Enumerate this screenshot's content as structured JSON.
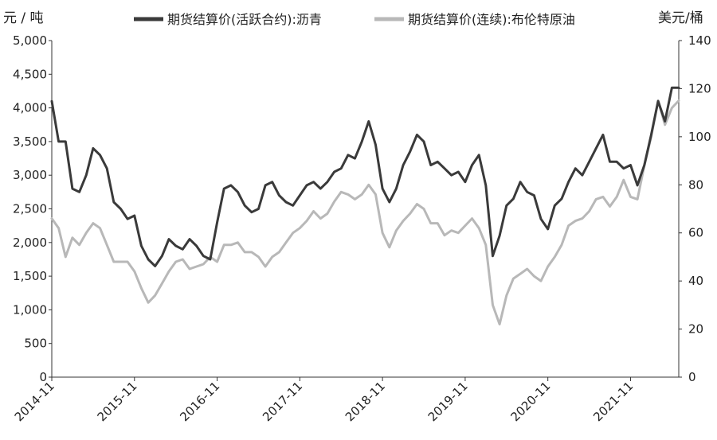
{
  "chart_data": {
    "type": "line",
    "title": "",
    "left_axis_unit": "元 / 吨",
    "right_axis_unit": "美元/桶",
    "left_ylim": [
      0,
      5000
    ],
    "right_ylim": [
      0,
      140
    ],
    "left_ticks": [
      "0",
      "500",
      "1,000",
      "1,500",
      "2,000",
      "2,500",
      "3,000",
      "3,500",
      "4,000",
      "4,500",
      "5,000"
    ],
    "right_ticks": [
      "0",
      "20",
      "40",
      "60",
      "80",
      "100",
      "120",
      "140"
    ],
    "x_ticks": [
      "2014-11",
      "2015-11",
      "2016-11",
      "2017-11",
      "2018-11",
      "2019-11",
      "2020-11",
      "2021-11"
    ],
    "x_range": [
      "2014-11",
      "2022-06"
    ],
    "grid": false,
    "legend_position": "top",
    "x_unit": "month",
    "series": [
      {
        "name": "期货结算价(活跃合约):沥青",
        "axis": "left",
        "color": "#3a3a3a",
        "x": [
          "2014-11",
          "2014-12",
          "2015-01",
          "2015-02",
          "2015-03",
          "2015-04",
          "2015-05",
          "2015-06",
          "2015-07",
          "2015-08",
          "2015-09",
          "2015-10",
          "2015-11",
          "2015-12",
          "2016-01",
          "2016-02",
          "2016-03",
          "2016-04",
          "2016-05",
          "2016-06",
          "2016-07",
          "2016-08",
          "2016-09",
          "2016-10",
          "2016-11",
          "2016-12",
          "2017-01",
          "2017-02",
          "2017-03",
          "2017-04",
          "2017-05",
          "2017-06",
          "2017-07",
          "2017-08",
          "2017-09",
          "2017-10",
          "2017-11",
          "2017-12",
          "2018-01",
          "2018-02",
          "2018-03",
          "2018-04",
          "2018-05",
          "2018-06",
          "2018-07",
          "2018-08",
          "2018-09",
          "2018-10",
          "2018-11",
          "2018-12",
          "2019-01",
          "2019-02",
          "2019-03",
          "2019-04",
          "2019-05",
          "2019-06",
          "2019-07",
          "2019-08",
          "2019-09",
          "2019-10",
          "2019-11",
          "2019-12",
          "2020-01",
          "2020-02",
          "2020-03",
          "2020-04",
          "2020-05",
          "2020-06",
          "2020-07",
          "2020-08",
          "2020-09",
          "2020-10",
          "2020-11",
          "2020-12",
          "2021-01",
          "2021-02",
          "2021-03",
          "2021-04",
          "2021-05",
          "2021-06",
          "2021-07",
          "2021-08",
          "2021-09",
          "2021-10",
          "2021-11",
          "2021-12",
          "2022-01",
          "2022-02",
          "2022-03",
          "2022-04",
          "2022-05",
          "2022-06"
        ],
        "values": [
          4100,
          3500,
          3500,
          2800,
          2750,
          3000,
          3400,
          3300,
          3100,
          2600,
          2500,
          2350,
          2400,
          1950,
          1750,
          1650,
          1800,
          2050,
          1950,
          1900,
          2050,
          1950,
          1800,
          1750,
          2300,
          2800,
          2850,
          2750,
          2550,
          2450,
          2500,
          2850,
          2900,
          2700,
          2600,
          2550,
          2700,
          2850,
          2900,
          2800,
          2900,
          3050,
          3100,
          3300,
          3250,
          3500,
          3800,
          3450,
          2800,
          2600,
          2800,
          3150,
          3350,
          3600,
          3500,
          3150,
          3200,
          3100,
          3000,
          3050,
          2900,
          3150,
          3300,
          2850,
          1800,
          2100,
          2550,
          2650,
          2900,
          2750,
          2700,
          2350,
          2200,
          2550,
          2650,
          2900,
          3100,
          3000,
          3200,
          3400,
          3600,
          3200,
          3200,
          3100,
          3150,
          2850,
          3150,
          3600,
          4100,
          3800,
          4300,
          4300
        ]
      },
      {
        "name": "期货结算价(连续):布伦特原油",
        "axis": "right",
        "color": "#b8b8b8",
        "x": [
          "2014-11",
          "2014-12",
          "2015-01",
          "2015-02",
          "2015-03",
          "2015-04",
          "2015-05",
          "2015-06",
          "2015-07",
          "2015-08",
          "2015-09",
          "2015-10",
          "2015-11",
          "2015-12",
          "2016-01",
          "2016-02",
          "2016-03",
          "2016-04",
          "2016-05",
          "2016-06",
          "2016-07",
          "2016-08",
          "2016-09",
          "2016-10",
          "2016-11",
          "2016-12",
          "2017-01",
          "2017-02",
          "2017-03",
          "2017-04",
          "2017-05",
          "2017-06",
          "2017-07",
          "2017-08",
          "2017-09",
          "2017-10",
          "2017-11",
          "2017-12",
          "2018-01",
          "2018-02",
          "2018-03",
          "2018-04",
          "2018-05",
          "2018-06",
          "2018-07",
          "2018-08",
          "2018-09",
          "2018-10",
          "2018-11",
          "2018-12",
          "2019-01",
          "2019-02",
          "2019-03",
          "2019-04",
          "2019-05",
          "2019-06",
          "2019-07",
          "2019-08",
          "2019-09",
          "2019-10",
          "2019-11",
          "2019-12",
          "2020-01",
          "2020-02",
          "2020-03",
          "2020-04",
          "2020-05",
          "2020-06",
          "2020-07",
          "2020-08",
          "2020-09",
          "2020-10",
          "2020-11",
          "2020-12",
          "2021-01",
          "2021-02",
          "2021-03",
          "2021-04",
          "2021-05",
          "2021-06",
          "2021-07",
          "2021-08",
          "2021-09",
          "2021-10",
          "2021-11",
          "2021-12",
          "2022-01",
          "2022-02",
          "2022-03",
          "2022-04",
          "2022-05",
          "2022-06"
        ],
        "values": [
          66,
          62,
          50,
          58,
          55,
          60,
          64,
          62,
          55,
          48,
          48,
          48,
          44,
          37,
          31,
          34,
          39,
          44,
          48,
          49,
          45,
          46,
          47,
          50,
          48,
          55,
          55,
          56,
          52,
          52,
          50,
          46,
          50,
          52,
          56,
          60,
          62,
          65,
          69,
          66,
          68,
          73,
          77,
          76,
          74,
          76,
          80,
          76,
          60,
          54,
          61,
          65,
          68,
          72,
          70,
          64,
          64,
          59,
          61,
          60,
          63,
          66,
          62,
          55,
          30,
          22,
          34,
          41,
          43,
          45,
          42,
          40,
          46,
          50,
          55,
          63,
          65,
          66,
          69,
          74,
          75,
          71,
          75,
          82,
          75,
          74,
          88,
          100,
          115,
          105,
          112,
          115
        ]
      }
    ]
  }
}
